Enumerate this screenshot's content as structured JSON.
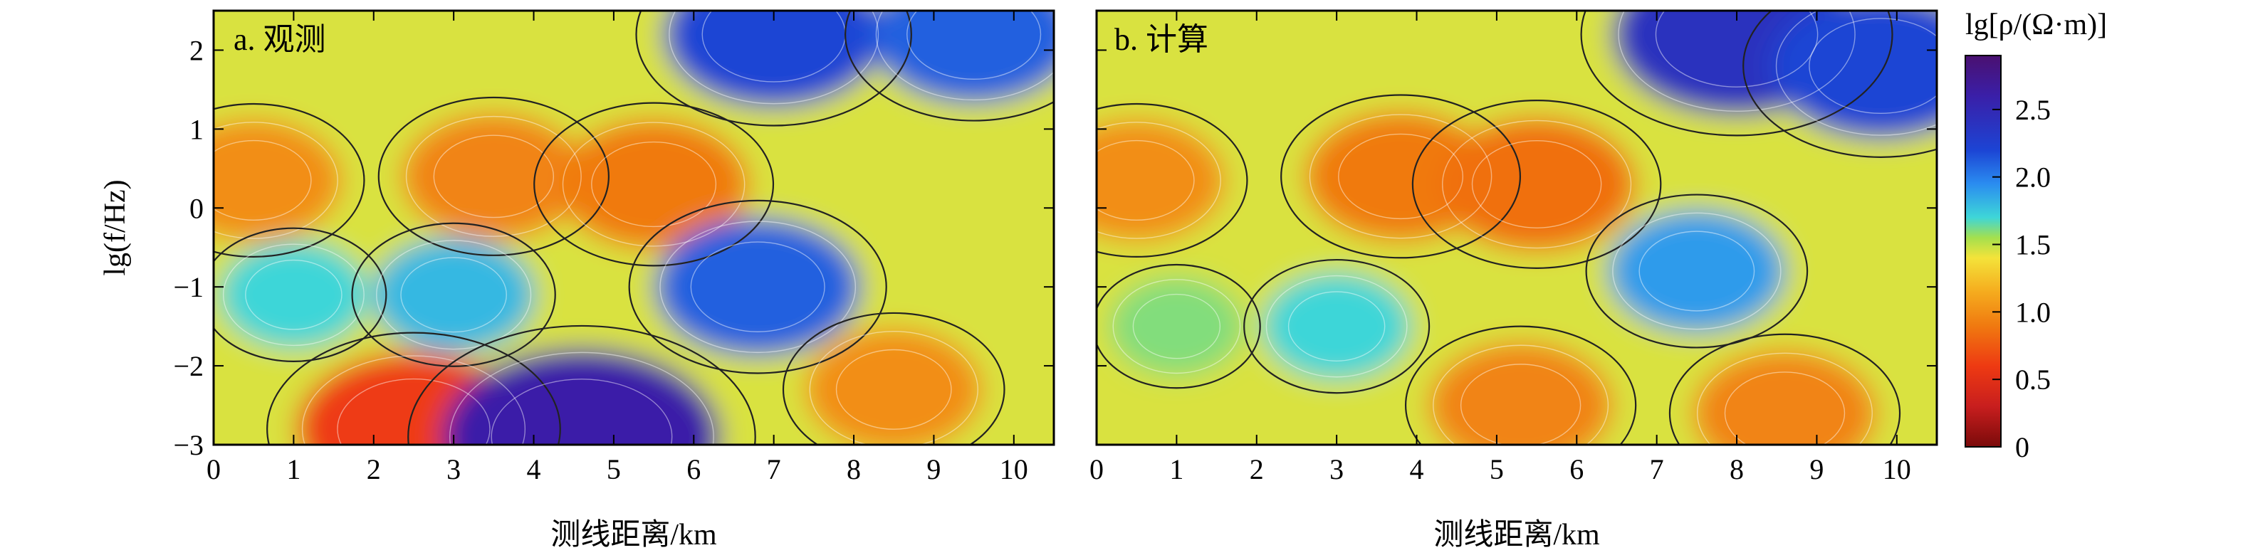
{
  "chart_data": [
    {
      "type": "heatmap",
      "title": "a. 观测",
      "xlabel": "测线距离/km",
      "ylabel": "lg(f/Hz)",
      "xlim": [
        0,
        10.5
      ],
      "ylim": [
        -3,
        2.5
      ],
      "xticks": [
        0,
        1,
        2,
        3,
        4,
        5,
        6,
        7,
        8,
        9,
        10
      ],
      "yticks": [
        2,
        1,
        0,
        -1,
        -2,
        -3
      ],
      "z_unit": "lg[ρ/(Ω·m)]",
      "contour_lines": true,
      "features": [
        {
          "x": 0.5,
          "y": 0.35,
          "value": 1.0
        },
        {
          "x": 3.5,
          "y": 0.4,
          "value": 0.95
        },
        {
          "x": 5.5,
          "y": 0.3,
          "value": 0.9
        },
        {
          "x": 1.0,
          "y": -1.1,
          "value": 1.7
        },
        {
          "x": 3.0,
          "y": -1.1,
          "value": 1.8
        },
        {
          "x": 6.8,
          "y": -1.0,
          "value": 2.1
        },
        {
          "x": 7.0,
          "y": 2.2,
          "value": 2.2
        },
        {
          "x": 9.5,
          "y": 2.2,
          "value": 2.1
        },
        {
          "x": 2.5,
          "y": -2.8,
          "value": 0.6
        },
        {
          "x": 4.6,
          "y": -2.9,
          "value": 2.6
        },
        {
          "x": 8.5,
          "y": -2.3,
          "value": 1.0
        }
      ]
    },
    {
      "type": "heatmap",
      "title": "b. 计算",
      "xlabel": "测线距离/km",
      "xlim": [
        0,
        10.5
      ],
      "ylim": [
        -3,
        2.5
      ],
      "xticks": [
        0,
        1,
        2,
        3,
        4,
        5,
        6,
        7,
        8,
        9,
        10
      ],
      "yticks": [
        2,
        1,
        0,
        -1,
        -2,
        -3
      ],
      "z_unit": "lg[ρ/(Ω·m)]",
      "contour_lines": true,
      "features": [
        {
          "x": 0.5,
          "y": 0.35,
          "value": 1.0
        },
        {
          "x": 3.8,
          "y": 0.4,
          "value": 0.9
        },
        {
          "x": 5.5,
          "y": 0.3,
          "value": 0.85
        },
        {
          "x": 1.0,
          "y": -1.5,
          "value": 1.6
        },
        {
          "x": 3.0,
          "y": -1.5,
          "value": 1.7
        },
        {
          "x": 7.5,
          "y": -0.8,
          "value": 1.9
        },
        {
          "x": 8.0,
          "y": 2.2,
          "value": 2.4
        },
        {
          "x": 9.8,
          "y": 1.8,
          "value": 2.2
        },
        {
          "x": 5.3,
          "y": -2.5,
          "value": 0.95
        },
        {
          "x": 8.6,
          "y": -2.6,
          "value": 0.95
        }
      ]
    }
  ],
  "colorbar": {
    "label": "lg[ρ/(Ω·m)]",
    "min": 0,
    "max": 2.9,
    "ticks": [
      "2.5",
      "2.0",
      "1.5",
      "1.0",
      "0.5",
      "0"
    ],
    "tick_values": [
      2.5,
      2.0,
      1.5,
      1.0,
      0.5,
      0
    ],
    "stops": [
      {
        "v": 0.0,
        "color": "#7a0a0a"
      },
      {
        "v": 0.3,
        "color": "#c81e1e"
      },
      {
        "v": 0.6,
        "color": "#ee3a12"
      },
      {
        "v": 0.9,
        "color": "#f07a10"
      },
      {
        "v": 1.15,
        "color": "#f5ac1e"
      },
      {
        "v": 1.4,
        "color": "#f4e33a"
      },
      {
        "v": 1.55,
        "color": "#a4e04e"
      },
      {
        "v": 1.7,
        "color": "#3ed6d8"
      },
      {
        "v": 1.95,
        "color": "#2a8cf0"
      },
      {
        "v": 2.2,
        "color": "#1c44d4"
      },
      {
        "v": 2.6,
        "color": "#3a1fa8"
      },
      {
        "v": 2.9,
        "color": "#4a1070"
      }
    ]
  }
}
